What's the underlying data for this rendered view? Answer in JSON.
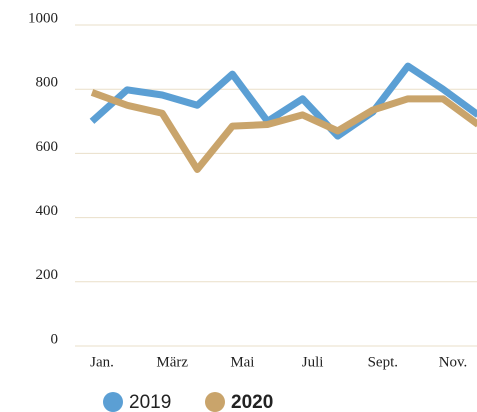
{
  "chart_data": {
    "type": "line",
    "categories": [
      "Jan.",
      null,
      "März",
      null,
      "Mai",
      null,
      "Juli",
      null,
      "Sept.",
      null,
      "Nov.",
      null
    ],
    "series": [
      {
        "name": "2019",
        "color": "#5b9fd4",
        "values": [
          700,
          798,
          782,
          750,
          847,
          700,
          770,
          654,
          729,
          872,
          800,
          720
        ]
      },
      {
        "name": "2020",
        "color": "#c9a46b",
        "values": [
          790,
          750,
          725,
          550,
          685,
          690,
          720,
          670,
          735,
          770,
          770,
          690
        ]
      }
    ],
    "ylim": [
      0,
      1000
    ],
    "yticks": [
      0,
      200,
      400,
      600,
      800,
      1000
    ],
    "grid": true
  }
}
